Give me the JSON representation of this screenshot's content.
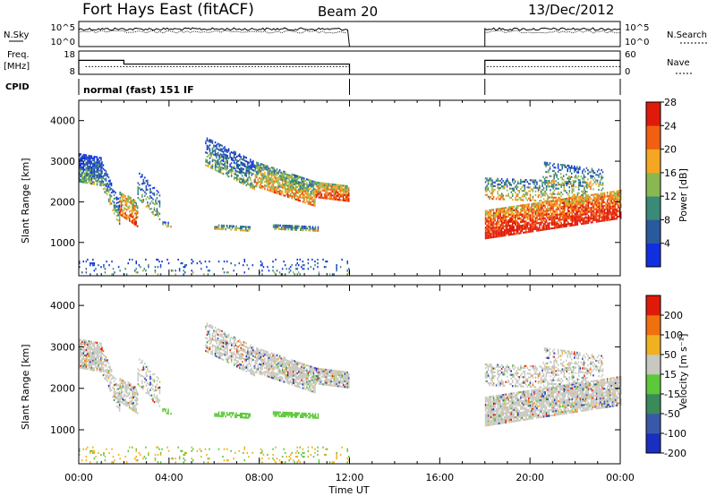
{
  "header": {
    "station": "Fort Hays East (fitACF)",
    "beam": "Beam 20",
    "date": "13/Dec/2012"
  },
  "top_panels": {
    "nsky_label": "N.Sky",
    "nsearch_label": "N.Search",
    "noise_ticks": [
      "10^5",
      "10^0"
    ],
    "freq_label": "Freq.",
    "freq_unit": "[MHz]",
    "freq_ticks": [
      "18",
      "8"
    ],
    "nave_label": "Nave",
    "nave_ticks": [
      "60",
      "0"
    ],
    "cpid_label": "CPID",
    "cpid_text": "normal (fast) 151 IF",
    "freq_mhz": [
      {
        "t0": 0.0,
        "t1": 2.0,
        "value": 14.0
      },
      {
        "t0": 2.0,
        "t1": 12.0,
        "value": 12.4
      },
      {
        "t0": 18.0,
        "t1": 24.0,
        "value": 14.0
      }
    ],
    "nave": 20
  },
  "chart_data": [
    {
      "type": "heatmap",
      "title": "Fort Hays East (fitACF) Beam 20 13/Dec/2012",
      "xlabel": "Time UT",
      "ylabel": "Slant Range [km]",
      "x_ticks": [
        "00:00",
        "04:00",
        "08:00",
        "12:00",
        "16:00",
        "20:00",
        "00:00"
      ],
      "y_ticks": [
        "1000",
        "2000",
        "3000",
        "4000"
      ],
      "xlim_hours": [
        0,
        24
      ],
      "ylim_km": [
        180,
        4500
      ],
      "colorbar_label": "Power [dB]",
      "colorbar_ticks": [
        "4",
        "8",
        "12",
        "16",
        "20",
        "24",
        "28"
      ],
      "colors": [
        "#1030e0",
        "#2a5a9e",
        "#3a8a78",
        "#8ab850",
        "#f5a623",
        "#f06010",
        "#e01a0a"
      ]
    },
    {
      "type": "heatmap",
      "xlabel": "Time UT",
      "ylabel": "Slant Range [km]",
      "x_ticks": [
        "00:00",
        "04:00",
        "08:00",
        "12:00",
        "16:00",
        "20:00",
        "00:00"
      ],
      "y_ticks": [
        "1000",
        "2000",
        "3000",
        "4000"
      ],
      "xlim_hours": [
        0,
        24
      ],
      "ylim_km": [
        180,
        4500
      ],
      "colorbar_label": "Velocity [m s⁻¹]",
      "colorbar_ticks": [
        "200",
        "100",
        "50",
        "15",
        "-15",
        "-50",
        "-100",
        "-200"
      ],
      "colors": [
        "#1a2fc0",
        "#3a58a8",
        "#3a8a5a",
        "#5cc83a",
        "#c8c8c0",
        "#f0b020",
        "#f07010",
        "#e01a0a"
      ]
    }
  ]
}
